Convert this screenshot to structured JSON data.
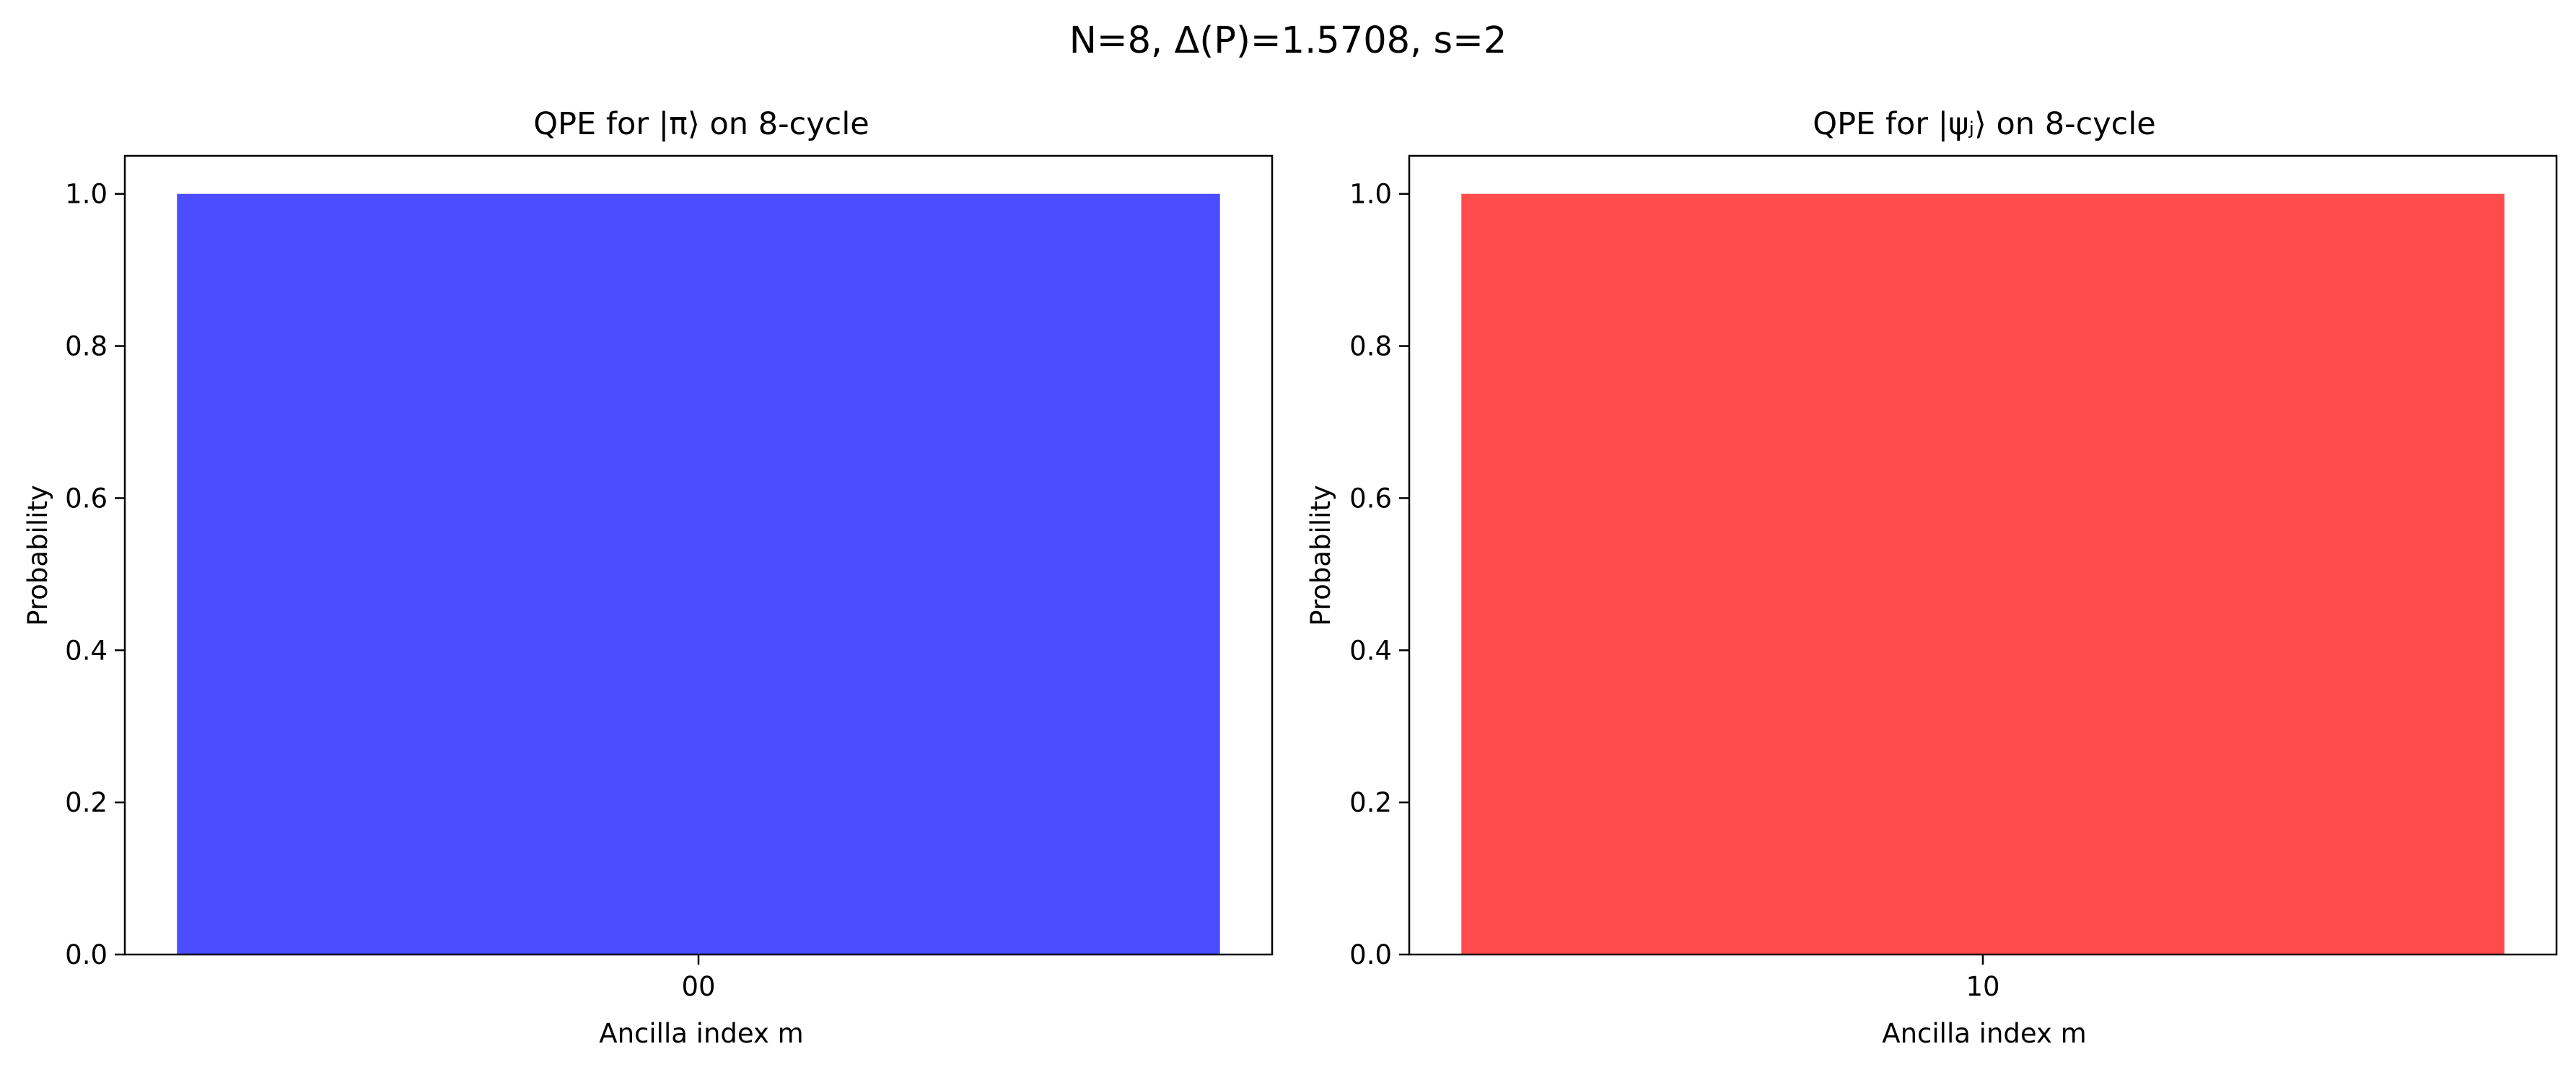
{
  "suptitle": "N=8, Δ(P)=1.5708, s=2",
  "chart_data": [
    {
      "type": "bar",
      "title": "QPE for |π⟩ on 8-cycle",
      "xlabel": "Ancilla index m",
      "ylabel": "Probability",
      "categories": [
        "00"
      ],
      "values": [
        1.0
      ],
      "color": "#4b4bff",
      "ylim": [
        0,
        1.05
      ],
      "yticks": [
        "0.0",
        "0.2",
        "0.4",
        "0.6",
        "0.8",
        "1.0"
      ],
      "grid": false
    },
    {
      "type": "bar",
      "title": "QPE for |ψⱼ⟩ on 8-cycle",
      "xlabel": "Ancilla index m",
      "ylabel": "Probability",
      "categories": [
        "10"
      ],
      "values": [
        1.0
      ],
      "color": "#ff4b4b",
      "ylim": [
        0,
        1.05
      ],
      "yticks": [
        "0.0",
        "0.2",
        "0.4",
        "0.6",
        "0.8",
        "1.0"
      ],
      "grid": false
    }
  ]
}
